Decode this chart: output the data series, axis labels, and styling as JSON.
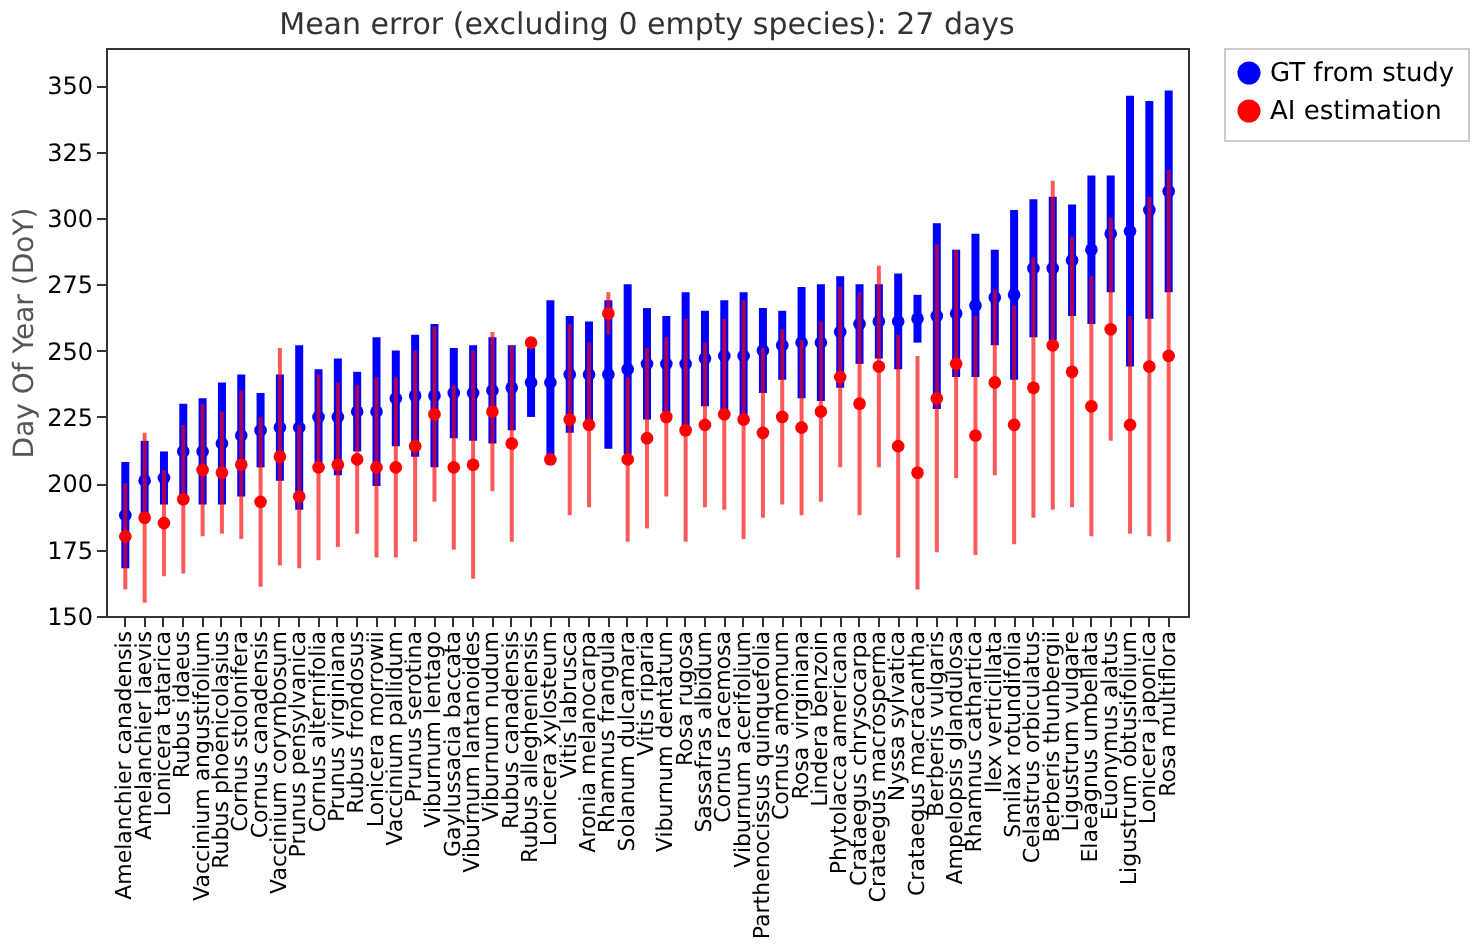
{
  "chart_data": {
    "type": "scatter",
    "title": "Mean error (excluding 0 empty species): 27 days",
    "ylabel": "Day Of Year (DoY)",
    "categories": [
      "Amelanchier canadensis",
      "Amelanchier laevis",
      "Lonicera tatarica",
      "Rubus idaeus",
      "Vaccinium angustifolium",
      "Rubus phoenicolasius",
      "Cornus stolonifera",
      "Cornus canadensis",
      "Vaccinium corymbosum",
      "Prunus pensylvanica",
      "Cornus alternifolia",
      "Prunus virginiana",
      "Rubus frondosus",
      "Lonicera morrowii",
      "Vaccinium pallidum",
      "Prunus serotina",
      "Viburnum lentago",
      "Gaylussacia baccata",
      "Viburnum lantanoides",
      "Viburnum nudum",
      "Rubus canadensis",
      "Rubus allegheniensis",
      "Lonicera xylosteum",
      "Vitis labrusca",
      "Aronia melanocarpa",
      "Rhamnus frangula",
      "Solanum dulcamara",
      "Vitis riparia",
      "Viburnum dentatum",
      "Rosa rugosa",
      "Sassafras albidum",
      "Cornus racemosa",
      "Viburnum acerifolium",
      "Parthenocissus quinquefolia",
      "Cornus amomum",
      "Rosa virginiana",
      "Lindera benzoin",
      "Phytolacca americana",
      "Crataegus chrysocarpa",
      "Crataegus macrosperma",
      "Nyssa sylvatica",
      "Crataegus macracantha",
      "Berberis vulgaris",
      "Ampelopsis glandulosa",
      "Rhamnus cathartica",
      "Ilex verticillata",
      "Smilax rotundifolia",
      "Celastrus orbiculatus",
      "Berberis thunbergii",
      "Ligustrum vulgare",
      "Elaeagnus umbellata",
      "Euonymus alatus",
      "Ligustrum obtusifolium",
      "Lonicera japonica",
      "Rosa multiflora"
    ],
    "series": [
      {
        "name": "GT from study",
        "color": "#0000ff",
        "values": [
          188,
          201,
          202,
          212,
          212,
          215,
          218,
          220,
          221,
          221,
          225,
          225,
          227,
          227,
          232,
          233,
          233,
          234,
          234,
          235,
          236,
          238,
          238,
          241,
          241,
          241,
          243,
          245,
          245,
          245,
          247,
          248,
          248,
          250,
          252,
          253,
          253,
          257,
          260,
          261,
          261,
          262,
          263,
          264,
          267,
          270,
          271,
          281,
          281,
          284,
          288,
          294,
          295,
          303,
          310
        ],
        "errors": [
          20,
          15,
          10,
          18,
          20,
          23,
          23,
          14,
          20,
          31,
          18,
          22,
          15,
          28,
          18,
          23,
          27,
          17,
          18,
          20,
          16,
          13,
          31,
          22,
          20,
          28,
          32,
          21,
          18,
          27,
          18,
          21,
          24,
          16,
          13,
          21,
          22,
          21,
          15,
          14,
          18,
          9,
          35,
          24,
          27,
          18,
          32,
          26,
          27,
          21,
          28,
          22,
          51,
          41,
          38
        ]
      },
      {
        "name": "AI estimation",
        "color": "#ff0000",
        "values": [
          180,
          187,
          185,
          194,
          205,
          204,
          207,
          193,
          210,
          195,
          206,
          207,
          209,
          206,
          206,
          214,
          226,
          206,
          207,
          227,
          215,
          253,
          209,
          224,
          222,
          264,
          209,
          217,
          225,
          220,
          222,
          226,
          224,
          219,
          225,
          221,
          227,
          240,
          230,
          244,
          214,
          204,
          232,
          245,
          218,
          238,
          222,
          236,
          252,
          242,
          229,
          258,
          222,
          244,
          248
        ],
        "errors": [
          20,
          32,
          20,
          28,
          25,
          23,
          28,
          32,
          41,
          27,
          35,
          31,
          28,
          34,
          34,
          36,
          33,
          31,
          43,
          30,
          37,
          2,
          2,
          36,
          31,
          8,
          31,
          34,
          30,
          42,
          31,
          36,
          45,
          32,
          33,
          33,
          34,
          34,
          42,
          38,
          42,
          44,
          58,
          43,
          45,
          35,
          45,
          49,
          62,
          51,
          49,
          42,
          41,
          64,
          70
        ]
      }
    ],
    "ylim": [
      150,
      364
    ],
    "yticks": [
      150,
      175,
      200,
      225,
      250,
      275,
      300,
      325,
      350
    ],
    "legend": "top right",
    "marker": "circle"
  }
}
